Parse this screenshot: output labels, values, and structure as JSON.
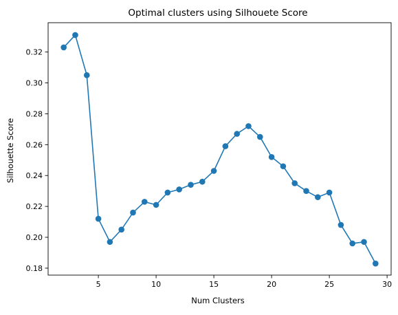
{
  "chart_data": {
    "type": "line",
    "title": "Optimal clusters using Silhouete Score",
    "xlabel": "Num Clusters",
    "ylabel": "Silhouette Score",
    "xlim": [
      0.65,
      30.35
    ],
    "ylim": [
      0.1755,
      0.339
    ],
    "x_ticks": [
      5,
      10,
      15,
      20,
      25,
      30
    ],
    "y_ticks": [
      0.18,
      0.2,
      0.22,
      0.24,
      0.26,
      0.28,
      0.3,
      0.32
    ],
    "grid": false,
    "marker": "circle",
    "line_color": "#1f77b4",
    "series": [
      {
        "x": [
          2,
          3,
          4,
          5,
          6,
          7,
          8,
          9,
          10,
          11,
          12,
          13,
          14,
          15,
          16,
          17,
          18,
          19,
          20,
          21,
          22,
          23,
          24,
          25,
          26,
          27,
          28,
          29
        ],
        "values": [
          0.323,
          0.331,
          0.305,
          0.212,
          0.197,
          0.205,
          0.216,
          0.223,
          0.221,
          0.229,
          0.231,
          0.234,
          0.236,
          0.243,
          0.259,
          0.267,
          0.272,
          0.265,
          0.252,
          0.246,
          0.235,
          0.23,
          0.226,
          0.229,
          0.208,
          0.196,
          0.197,
          0.183
        ]
      }
    ]
  }
}
